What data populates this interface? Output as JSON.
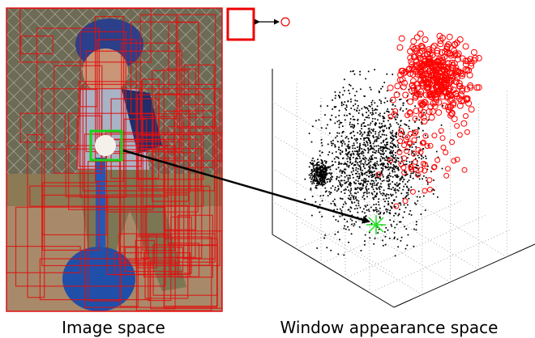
{
  "captions": {
    "image": "Image space",
    "appearance": "Window appearance space"
  }
}
